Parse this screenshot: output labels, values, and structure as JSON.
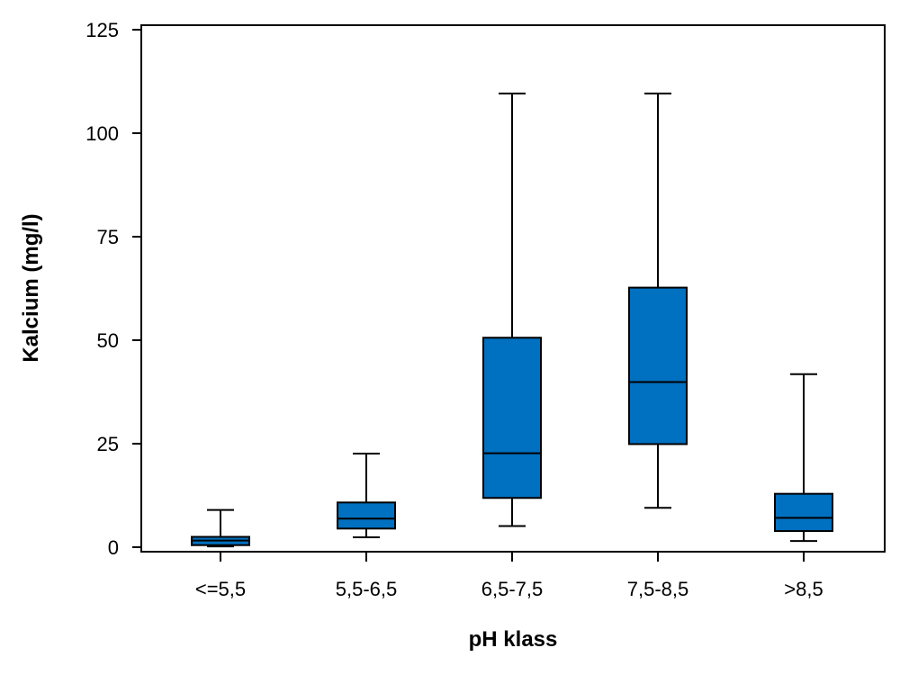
{
  "chart_data": {
    "type": "boxplot",
    "title": "",
    "xlabel": "pH klass",
    "ylabel": "Kalcium (mg/l)",
    "ylim": [
      0,
      125
    ],
    "yticks": [
      0,
      25,
      50,
      75,
      100,
      125
    ],
    "ytick_labels": [
      "0",
      "25",
      "50",
      "75",
      "100",
      "125"
    ],
    "grid": false,
    "box_color": "#0070c0",
    "categories": [
      "<=5,5",
      "5,5-6,5",
      "6,5-7,5",
      "7,5-8,5",
      ">8,5"
    ],
    "boxes": [
      {
        "whisker_low": 0.2,
        "q1": 0.5,
        "median": 1.6,
        "q3": 2.5,
        "whisker_high": 9
      },
      {
        "whisker_low": 2.4,
        "q1": 4.5,
        "median": 6.9,
        "q3": 10.8,
        "whisker_high": 22.6
      },
      {
        "whisker_low": 5.1,
        "q1": 11.9,
        "median": 22.7,
        "q3": 50.6,
        "whisker_high": 109.6
      },
      {
        "whisker_low": 9.5,
        "q1": 24.9,
        "median": 39.9,
        "q3": 62.7,
        "whisker_high": 109.6
      },
      {
        "whisker_low": 1.5,
        "q1": 3.9,
        "median": 7.1,
        "q3": 12.9,
        "whisker_high": 41.8
      }
    ]
  }
}
